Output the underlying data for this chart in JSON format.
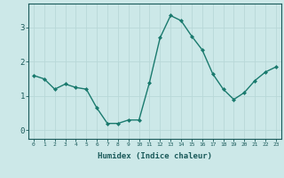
{
  "title": "",
  "xlabel": "Humidex (Indice chaleur)",
  "x": [
    0,
    1,
    2,
    3,
    4,
    5,
    6,
    7,
    8,
    9,
    10,
    11,
    12,
    13,
    14,
    15,
    16,
    17,
    18,
    19,
    20,
    21,
    22,
    23
  ],
  "y": [
    1.6,
    1.5,
    1.2,
    1.35,
    1.25,
    1.2,
    0.65,
    0.2,
    0.2,
    0.3,
    0.3,
    1.4,
    2.7,
    3.35,
    3.2,
    2.75,
    2.35,
    1.65,
    1.2,
    0.9,
    1.1,
    1.45,
    1.7,
    1.85
  ],
  "line_color": "#1a7a6e",
  "marker_color": "#1a7a6e",
  "bg_color": "#cce8e8",
  "grid_color": "#b8d8d8",
  "axis_color": "#1a5a5a",
  "tick_color": "#1a5a5a",
  "ylim": [
    -0.25,
    3.7
  ],
  "yticks": [
    0,
    1,
    2,
    3
  ],
  "xlim": [
    -0.5,
    23.5
  ]
}
